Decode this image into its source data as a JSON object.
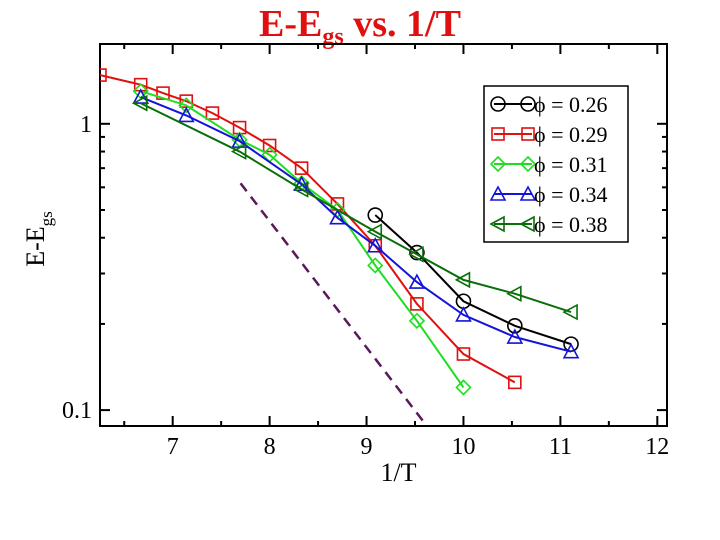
{
  "chart_data": {
    "type": "line",
    "title": {
      "main": "E-E",
      "sub": "gs",
      "rest": " vs. 1/T"
    },
    "xlabel": "1/T",
    "ylabel": {
      "main": "E-E",
      "sub": "gs"
    },
    "xlim": [
      6.25,
      12.1
    ],
    "ylim": [
      0.088,
      1.9
    ],
    "yscale": "log",
    "xticks": [
      7,
      8,
      9,
      10,
      11,
      12
    ],
    "xtick_labels": [
      "7",
      "8",
      "9",
      "10",
      "11",
      "12"
    ],
    "yticks": [
      0.1,
      1
    ],
    "ytick_labels": [
      "0.1",
      "1"
    ],
    "legend_position": "top-right",
    "series": [
      {
        "name": "ϕ = 0.26",
        "color": "#000000",
        "marker": "circle",
        "x": [
          9.09,
          9.52,
          10.0,
          10.53,
          11.11
        ],
        "y": [
          0.48,
          0.355,
          0.24,
          0.197,
          0.17
        ]
      },
      {
        "name": "ϕ = 0.29",
        "color": "#e01010",
        "marker": "square",
        "x": [
          6.25,
          6.67,
          6.9,
          7.14,
          7.41,
          7.69,
          8.0,
          8.33,
          8.7,
          9.09,
          9.52,
          10.0,
          10.53
        ],
        "y": [
          1.48,
          1.37,
          1.28,
          1.2,
          1.09,
          0.97,
          0.84,
          0.7,
          0.525,
          0.375,
          0.235,
          0.157,
          0.125
        ]
      },
      {
        "name": "ϕ = 0.31",
        "color": "#20dd20",
        "marker": "diamond",
        "x": [
          6.67,
          7.14,
          7.69,
          8.0,
          8.33,
          8.7,
          9.09,
          9.52,
          10.0
        ],
        "y": [
          1.3,
          1.16,
          0.88,
          0.78,
          0.62,
          0.5,
          0.32,
          0.205,
          0.12
        ]
      },
      {
        "name": "ϕ = 0.34",
        "color": "#1414d8",
        "marker": "triangle-up",
        "x": [
          6.67,
          7.14,
          7.69,
          8.33,
          8.7,
          9.09,
          9.52,
          10.0,
          10.53,
          11.11
        ],
        "y": [
          1.24,
          1.07,
          0.87,
          0.615,
          0.47,
          0.375,
          0.28,
          0.215,
          0.18,
          0.16
        ]
      },
      {
        "name": "ϕ = 0.38",
        "color": "#0a6e0a",
        "marker": "triangle-left",
        "x": [
          6.67,
          7.69,
          8.33,
          9.09,
          9.52,
          10.0,
          10.53,
          11.11
        ],
        "y": [
          1.18,
          0.8,
          0.59,
          0.42,
          0.35,
          0.285,
          0.255,
          0.22
        ]
      }
    ],
    "reference_line": {
      "style": "dashed",
      "color": "#5a1a5a",
      "x": [
        7.7,
        9.6
      ],
      "y": [
        0.62,
        0.09
      ]
    }
  }
}
